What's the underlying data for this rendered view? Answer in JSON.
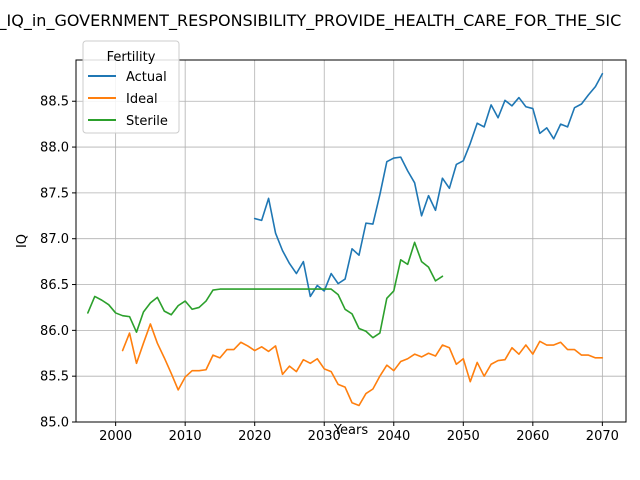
{
  "chart_data": {
    "type": "line",
    "title": "e_IQ_in_GOVERNMENT_RESPONSIBILITY_PROVIDE_HEALTH_CARE_FOR_THE_SIC",
    "xlabel": "Years",
    "ylabel": "IQ",
    "xlim": [
      1994.3,
      2073.4
    ],
    "ylim": [
      85.0,
      88.95
    ],
    "xticks": [
      2000,
      2010,
      2020,
      2030,
      2040,
      2050,
      2060,
      2070
    ],
    "yticks": [
      85.0,
      85.5,
      86.0,
      86.5,
      87.0,
      87.5,
      88.0,
      88.5
    ],
    "ytick_labels": [
      "85.0",
      "85.5",
      "86.0",
      "86.5",
      "87.0",
      "87.5",
      "88.0",
      "88.5"
    ],
    "grid": true,
    "legend": {
      "title": "Fertility",
      "placement": "top-left"
    },
    "series": [
      {
        "name": "Actual",
        "color": "#1f77b4",
        "x": [
          2020,
          2021,
          2022,
          2023,
          2024,
          2025,
          2026,
          2027,
          2028,
          2029,
          2030,
          2031,
          2032,
          2033,
          2034,
          2035,
          2036,
          2037,
          2038,
          2039,
          2040,
          2041,
          2042,
          2043,
          2044,
          2045,
          2046,
          2047,
          2048,
          2049,
          2050,
          2051,
          2052,
          2053,
          2054,
          2055,
          2056,
          2057,
          2058,
          2059,
          2060,
          2061,
          2062,
          2063,
          2064,
          2065,
          2066,
          2067,
          2068,
          2069,
          2070
        ],
        "y": [
          87.22,
          87.2,
          87.44,
          87.06,
          86.87,
          86.73,
          86.62,
          86.75,
          86.37,
          86.49,
          86.43,
          86.62,
          86.51,
          86.56,
          86.89,
          86.82,
          87.17,
          87.16,
          87.48,
          87.84,
          87.88,
          87.89,
          87.74,
          87.61,
          87.25,
          87.47,
          87.31,
          87.66,
          87.55,
          87.81,
          87.85,
          88.04,
          88.26,
          88.22,
          88.46,
          88.32,
          88.51,
          88.45,
          88.54,
          88.44,
          88.42,
          88.15,
          88.21,
          88.09,
          88.25,
          88.22,
          88.43,
          88.47,
          88.57,
          88.66,
          88.8
        ]
      },
      {
        "name": "Ideal",
        "color": "#ff7f0e",
        "x": [
          2001,
          2002,
          2003,
          2004,
          2005,
          2006,
          2007,
          2008,
          2009,
          2010,
          2011,
          2012,
          2013,
          2014,
          2015,
          2016,
          2017,
          2018,
          2019,
          2020,
          2021,
          2022,
          2023,
          2024,
          2025,
          2026,
          2027,
          2028,
          2029,
          2030,
          2031,
          2032,
          2033,
          2034,
          2035,
          2036,
          2037,
          2038,
          2039,
          2040,
          2041,
          2042,
          2043,
          2044,
          2045,
          2046,
          2047,
          2048,
          2049,
          2050,
          2051,
          2052,
          2053,
          2054,
          2055,
          2056,
          2057,
          2058,
          2059,
          2060,
          2061,
          2062,
          2063,
          2064,
          2065,
          2066,
          2067,
          2068,
          2069,
          2070
        ],
        "y": [
          85.78,
          85.97,
          85.64,
          85.86,
          86.07,
          85.86,
          85.7,
          85.53,
          85.35,
          85.49,
          85.56,
          85.56,
          85.57,
          85.73,
          85.7,
          85.79,
          85.79,
          85.87,
          85.83,
          85.78,
          85.82,
          85.77,
          85.83,
          85.52,
          85.61,
          85.55,
          85.68,
          85.64,
          85.69,
          85.58,
          85.55,
          85.41,
          85.38,
          85.21,
          85.18,
          85.31,
          85.36,
          85.5,
          85.62,
          85.56,
          85.66,
          85.69,
          85.74,
          85.71,
          85.75,
          85.72,
          85.84,
          85.81,
          85.63,
          85.69,
          85.44,
          85.65,
          85.5,
          85.63,
          85.67,
          85.68,
          85.81,
          85.74,
          85.84,
          85.74,
          85.88,
          85.84,
          85.84,
          85.87,
          85.79,
          85.79,
          85.73,
          85.73,
          85.7,
          85.7
        ]
      },
      {
        "name": "Sterile",
        "color": "#2ca02c",
        "x": [
          1996,
          1997,
          1998,
          1999,
          2000,
          2001,
          2002,
          2003,
          2004,
          2005,
          2006,
          2007,
          2008,
          2009,
          2010,
          2011,
          2012,
          2013,
          2014,
          2015,
          2016,
          2017,
          2018,
          2019,
          2020,
          2021,
          2022,
          2023,
          2024,
          2025,
          2026,
          2027,
          2028,
          2029,
          2030,
          2031,
          2032,
          2033,
          2034,
          2035,
          2036,
          2037,
          2038,
          2039,
          2040,
          2041,
          2042,
          2043,
          2044,
          2045,
          2046,
          2047
        ],
        "y": [
          86.19,
          86.37,
          86.33,
          86.28,
          86.19,
          86.16,
          86.15,
          85.98,
          86.2,
          86.3,
          86.36,
          86.21,
          86.17,
          86.27,
          86.32,
          86.23,
          86.25,
          86.32,
          86.44,
          86.45,
          86.45,
          86.45,
          86.45,
          86.45,
          86.45,
          86.45,
          86.45,
          86.45,
          86.45,
          86.45,
          86.45,
          86.45,
          86.45,
          86.45,
          86.45,
          86.45,
          86.39,
          86.23,
          86.18,
          86.02,
          85.99,
          85.92,
          85.97,
          86.35,
          86.43,
          86.77,
          86.72,
          86.96,
          86.75,
          86.69,
          86.54,
          86.59
        ]
      }
    ]
  }
}
